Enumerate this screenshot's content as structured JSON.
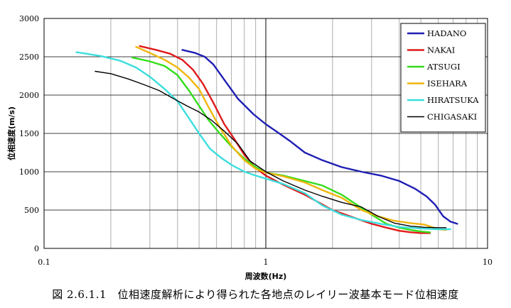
{
  "caption": "図 2.6.1.1　位相速度解析により得られた各地点のレイリー波基本モード位相速度",
  "chart_data": {
    "type": "line",
    "title": "",
    "xlabel": "周波数(Hz)",
    "ylabel": "位相速度(m/s)",
    "xscale": "log",
    "xlim": [
      0.1,
      10
    ],
    "ylim": [
      0,
      3000
    ],
    "x_ticks": [
      0.1,
      1,
      10
    ],
    "x_tick_labels": [
      "0.1",
      "1",
      "10"
    ],
    "y_ticks": [
      0,
      500,
      1000,
      1500,
      2000,
      2500,
      3000
    ],
    "y_tick_labels": [
      "0",
      "500",
      "1000",
      "1500",
      "2000",
      "2500",
      "3000"
    ],
    "grid": true,
    "legend_position": "top-right",
    "series": [
      {
        "name": "HADANO",
        "color": "#1f1fb4",
        "x": [
          0.42,
          0.48,
          0.53,
          0.58,
          0.65,
          0.75,
          0.88,
          1.0,
          1.15,
          1.3,
          1.5,
          1.8,
          2.2,
          2.7,
          3.3,
          4.0,
          4.7,
          5.3,
          5.8,
          6.3,
          6.8,
          7.3
        ],
        "y": [
          2590,
          2550,
          2500,
          2400,
          2200,
          1950,
          1750,
          1620,
          1500,
          1390,
          1250,
          1150,
          1060,
          1000,
          950,
          880,
          780,
          680,
          570,
          420,
          350,
          320
        ]
      },
      {
        "name": "NAKAI",
        "color": "#e01a1a",
        "x": [
          0.27,
          0.32,
          0.37,
          0.42,
          0.47,
          0.52,
          0.58,
          0.65,
          0.72,
          0.8,
          0.9,
          1.0,
          1.2,
          1.5,
          2.0,
          2.5,
          3.0,
          3.5,
          4.0,
          4.5,
          5.0,
          5.5
        ],
        "y": [
          2640,
          2590,
          2540,
          2460,
          2330,
          2150,
          1900,
          1620,
          1430,
          1220,
          1050,
          950,
          830,
          700,
          500,
          400,
          320,
          270,
          230,
          210,
          200,
          200
        ]
      },
      {
        "name": "ATSUGI",
        "color": "#33dd1a",
        "x": [
          0.25,
          0.3,
          0.35,
          0.4,
          0.45,
          0.5,
          0.55,
          0.62,
          0.7,
          0.8,
          0.9,
          1.0,
          1.2,
          1.5,
          1.8,
          2.2,
          2.6,
          3.0,
          3.5,
          4.0,
          4.5,
          5.0,
          5.5
        ],
        "y": [
          2490,
          2440,
          2380,
          2260,
          2060,
          1860,
          1680,
          1500,
          1330,
          1170,
          1060,
          990,
          950,
          880,
          820,
          700,
          560,
          440,
          320,
          270,
          240,
          220,
          210
        ]
      },
      {
        "name": "ISEHARA",
        "color": "#f0b60e",
        "x": [
          0.26,
          0.3,
          0.35,
          0.4,
          0.45,
          0.5,
          0.55,
          0.62,
          0.7,
          0.8,
          0.9,
          1.0,
          1.2,
          1.5,
          1.8,
          2.2,
          2.7,
          3.2,
          3.8,
          4.5,
          5.2,
          6.0,
          6.5
        ],
        "y": [
          2630,
          2550,
          2460,
          2360,
          2230,
          2080,
          1850,
          1580,
          1340,
          1150,
          1040,
          990,
          940,
          860,
          760,
          660,
          500,
          420,
          360,
          330,
          310,
          250,
          240
        ]
      },
      {
        "name": "HIRATSUKA",
        "color": "#3cdede",
        "x": [
          0.14,
          0.18,
          0.22,
          0.26,
          0.3,
          0.35,
          0.4,
          0.45,
          0.5,
          0.56,
          0.63,
          0.7,
          0.8,
          0.9,
          1.0,
          1.2,
          1.5,
          1.8,
          2.2,
          2.7,
          3.3,
          4.0,
          5.0,
          6.0,
          6.8
        ],
        "y": [
          2560,
          2510,
          2450,
          2360,
          2240,
          2080,
          1920,
          1700,
          1500,
          1300,
          1180,
          1090,
          1000,
          950,
          910,
          840,
          720,
          560,
          440,
          370,
          320,
          280,
          260,
          250,
          250
        ]
      },
      {
        "name": "CHIGASAKI",
        "color": "#000000",
        "x": [
          0.17,
          0.2,
          0.24,
          0.28,
          0.33,
          0.38,
          0.44,
          0.5,
          0.57,
          0.65,
          0.75,
          0.85,
          1.0,
          1.2,
          1.5,
          1.8,
          2.2,
          2.7,
          3.2,
          3.8,
          4.5,
          5.2,
          6.0,
          6.5
        ],
        "y": [
          2310,
          2280,
          2210,
          2140,
          2060,
          1960,
          1860,
          1780,
          1670,
          1530,
          1360,
          1140,
          1000,
          880,
          760,
          680,
          600,
          540,
          420,
          330,
          290,
          275,
          270,
          270
        ]
      }
    ]
  }
}
